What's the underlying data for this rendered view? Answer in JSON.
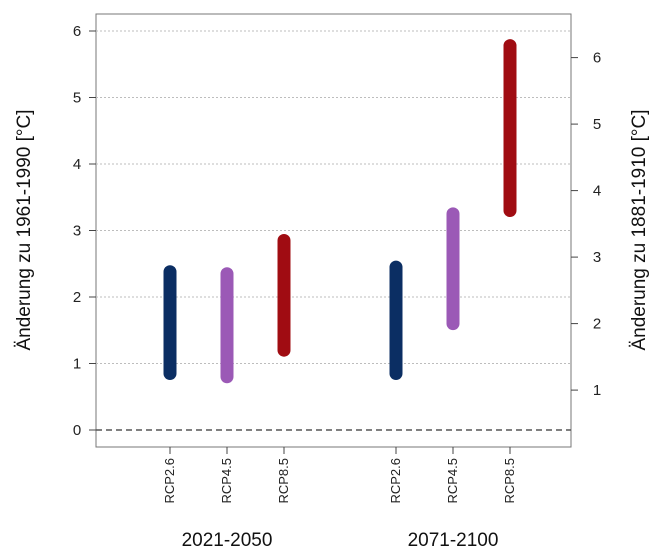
{
  "chart_data": {
    "type": "range-bar",
    "ylabel_left": "Änderung zu 1961-1990 [°C]",
    "ylabel_right": "Änderung zu 1881-1910 [°C]",
    "ylim_left": [
      -0.2,
      6.25
    ],
    "yticks_left": [
      "0",
      "1",
      "2",
      "3",
      "4",
      "5",
      "6"
    ],
    "yticks_right": [
      "1",
      "2",
      "3",
      "4",
      "5",
      "6"
    ],
    "right_axis_offset": 0.4,
    "grid": true,
    "zero_line": "dashed",
    "groups": [
      {
        "label": "2021-2050",
        "bars": [
          {
            "category": "RCP2.6",
            "min": 0.85,
            "max": 2.38,
            "color": "#0b2e63"
          },
          {
            "category": "RCP4.5",
            "min": 0.8,
            "max": 2.35,
            "color": "#9b59b6"
          },
          {
            "category": "RCP8.5",
            "min": 1.2,
            "max": 2.85,
            "color": "#a00c12"
          }
        ]
      },
      {
        "label": "2071-2100",
        "bars": [
          {
            "category": "RCP2.6",
            "min": 0.85,
            "max": 2.45,
            "color": "#0b2e63"
          },
          {
            "category": "RCP4.5",
            "min": 1.6,
            "max": 3.25,
            "color": "#9b59b6"
          },
          {
            "category": "RCP8.5",
            "min": 3.3,
            "max": 5.78,
            "color": "#a00c12"
          }
        ]
      }
    ]
  }
}
